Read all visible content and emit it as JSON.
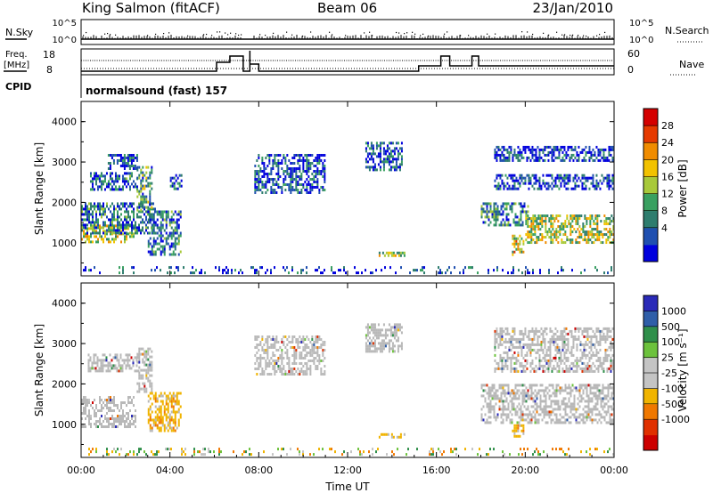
{
  "header": {
    "station": "King Salmon (fitACF)",
    "beam": "Beam 06",
    "date": "23/Jan/2010"
  },
  "top_panel": {
    "nsky_label": "N.Sky",
    "nsearch_label": "N.Search",
    "left_ticks": [
      "10^5",
      "10^0"
    ],
    "right_ticks": [
      "10^5",
      "10^0"
    ],
    "freq_label_line1": "Freq.",
    "freq_label_line2": "[MHz]",
    "freq_ticks": [
      "18",
      "8"
    ],
    "nave_label": "Nave",
    "nave_ticks": [
      "60",
      "0"
    ],
    "cpid_label": "CPID",
    "cpid_value": "normalsound (fast) 157"
  },
  "colors": {
    "power_scale": [
      "#0000dd",
      "#1f4fb0",
      "#2e7d6e",
      "#39a060",
      "#a8c93a",
      "#f2c200",
      "#f08c00",
      "#e63a00",
      "#d40000"
    ],
    "velocity_scale": [
      "#2a2ab8",
      "#2f5ea8",
      "#2f8f4a",
      "#6cc23c",
      "#c4c4c4",
      "#c4c4c4",
      "#f0b400",
      "#f07800",
      "#e03000",
      "#cc0000"
    ],
    "ground_scatter": "#b8b8b8"
  },
  "chart_data": [
    {
      "type": "heatmap",
      "title": "Power",
      "ylabel": "Slant Range [km]",
      "xlabel": "",
      "ylim": [
        180,
        4500
      ],
      "xlim": [
        0,
        24
      ],
      "y_ticks": [
        "1000",
        "2000",
        "3000",
        "4000"
      ],
      "x_ticks": [],
      "colorbar": {
        "label": "Power [dB]",
        "range": [
          0,
          32
        ],
        "ticks": [
          "4",
          "8",
          "12",
          "16",
          "20",
          "24",
          "28"
        ]
      },
      "regions": [
        {
          "t0": 0.0,
          "t1": 2.5,
          "r0": 1000,
          "r1": 1450,
          "level": 0.55
        },
        {
          "t0": 0.0,
          "t1": 3.4,
          "r0": 1200,
          "r1": 2000,
          "level": 0.25
        },
        {
          "t0": 0.4,
          "t1": 2.6,
          "r0": 2300,
          "r1": 2750,
          "level": 0.2
        },
        {
          "t0": 1.2,
          "t1": 2.6,
          "r0": 2800,
          "r1": 3200,
          "level": 0.15
        },
        {
          "t0": 2.5,
          "t1": 3.2,
          "r0": 1800,
          "r1": 2900,
          "level": 0.35
        },
        {
          "t0": 3.0,
          "t1": 4.5,
          "r0": 700,
          "r1": 1800,
          "level": 0.22
        },
        {
          "t0": 4.0,
          "t1": 4.6,
          "r0": 2300,
          "r1": 2700,
          "level": 0.18
        },
        {
          "t0": 7.8,
          "t1": 11.0,
          "r0": 2200,
          "r1": 3200,
          "level": 0.15
        },
        {
          "t0": 12.8,
          "t1": 14.5,
          "r0": 2800,
          "r1": 3500,
          "level": 0.15
        },
        {
          "t0": 13.4,
          "t1": 14.6,
          "r0": 650,
          "r1": 780,
          "level": 0.45
        },
        {
          "t0": 18.0,
          "t1": 20.2,
          "r0": 1400,
          "r1": 2000,
          "level": 0.3
        },
        {
          "t0": 18.6,
          "t1": 24.0,
          "r0": 3000,
          "r1": 3400,
          "level": 0.12
        },
        {
          "t0": 18.6,
          "t1": 24.0,
          "r0": 2300,
          "r1": 2700,
          "level": 0.12
        },
        {
          "t0": 19.4,
          "t1": 20.0,
          "r0": 700,
          "r1": 1200,
          "level": 0.55
        },
        {
          "t0": 20.0,
          "t1": 24.0,
          "r0": 1000,
          "r1": 1700,
          "level": 0.5
        },
        {
          "t0": 0.0,
          "t1": 24.0,
          "r0": 200,
          "r1": 420,
          "level": 0.15
        }
      ]
    },
    {
      "type": "heatmap",
      "title": "Velocity",
      "ylabel": "Slant Range [km]",
      "xlabel": "Time UT",
      "ylim": [
        180,
        4500
      ],
      "xlim": [
        0,
        24
      ],
      "y_ticks": [
        "1000",
        "2000",
        "3000",
        "4000"
      ],
      "x_ticks": [
        "00:00",
        "04:00",
        "08:00",
        "12:00",
        "16:00",
        "20:00",
        "00:00"
      ],
      "colorbar": {
        "label": "Velocity [m s⁻¹]",
        "ticks": [
          "1000",
          "500",
          "100",
          "25",
          "-25",
          "-100",
          "-500",
          "-1000"
        ]
      },
      "regions": [
        {
          "t0": 0.0,
          "t1": 2.5,
          "r0": 900,
          "r1": 1700,
          "kind": "ground"
        },
        {
          "t0": 2.5,
          "t1": 3.2,
          "r0": 1800,
          "r1": 2900,
          "kind": "ground"
        },
        {
          "t0": 3.0,
          "t1": 4.5,
          "r0": 800,
          "r1": 1800,
          "kind": "neg"
        },
        {
          "t0": 0.3,
          "t1": 2.6,
          "r0": 2300,
          "r1": 2750,
          "kind": "ground"
        },
        {
          "t0": 7.8,
          "t1": 11.0,
          "r0": 2200,
          "r1": 3200,
          "kind": "ground"
        },
        {
          "t0": 12.8,
          "t1": 14.5,
          "r0": 2800,
          "r1": 3500,
          "kind": "ground"
        },
        {
          "t0": 13.4,
          "t1": 14.6,
          "r0": 650,
          "r1": 780,
          "kind": "neg"
        },
        {
          "t0": 18.0,
          "t1": 24.0,
          "r0": 1000,
          "r1": 2000,
          "kind": "ground"
        },
        {
          "t0": 19.4,
          "t1": 20.0,
          "r0": 700,
          "r1": 1000,
          "kind": "neg"
        },
        {
          "t0": 18.6,
          "t1": 24.0,
          "r0": 2300,
          "r1": 3400,
          "kind": "ground"
        },
        {
          "t0": 0.0,
          "t1": 24.0,
          "r0": 200,
          "r1": 420,
          "kind": "mixed"
        }
      ]
    }
  ]
}
